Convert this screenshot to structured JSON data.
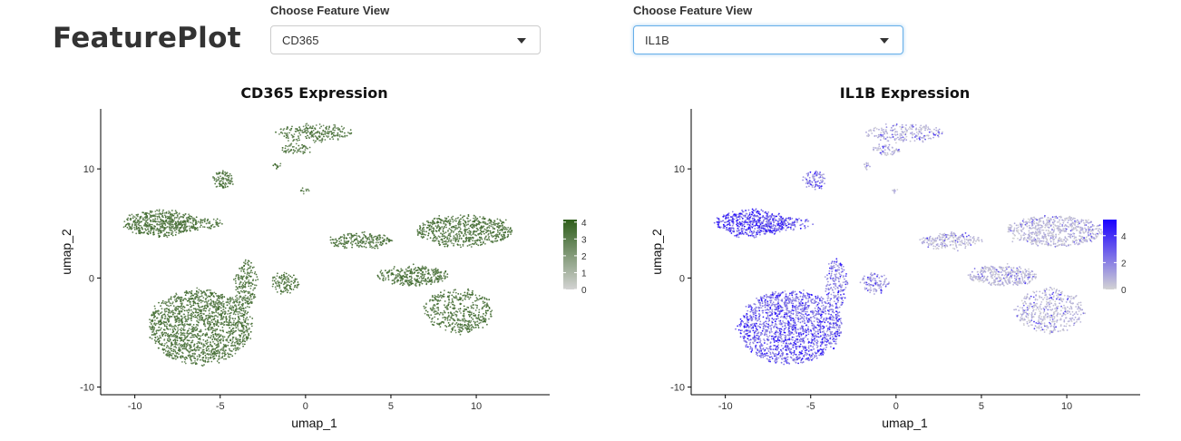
{
  "app": {
    "title": "FeaturePlot"
  },
  "controls": [
    {
      "label": "Choose Feature View",
      "selected": "CD365",
      "focused": false
    },
    {
      "label": "Choose Feature View",
      "selected": "IL1B",
      "focused": true
    }
  ],
  "chart_data": [
    {
      "type": "scatter",
      "title": "CD365 Expression",
      "xlabel": "umap_1",
      "ylabel": "umap_2",
      "xlim": [
        -12,
        14.3
      ],
      "ylim": [
        -10.7,
        15.5
      ],
      "xticks": [
        -10,
        -5,
        0,
        5,
        10
      ],
      "yticks": [
        -10,
        0,
        10
      ],
      "grid": false,
      "legend": {
        "placement": "right",
        "ticks": [
          0,
          1,
          2,
          3,
          4
        ],
        "low_color": "#d3d3d3",
        "high_color": "#2e5e1a"
      },
      "series": [
        {
          "color_scale": [
            "#d3d3d3",
            "#2e5e1a"
          ]
        }
      ]
    },
    {
      "type": "scatter",
      "title": "IL1B Expression",
      "xlabel": "umap_1",
      "ylabel": "umap_2",
      "xlim": [
        -12,
        14.3
      ],
      "ylim": [
        -10.7,
        15.5
      ],
      "xticks": [
        -10,
        -5,
        0,
        5,
        10
      ],
      "yticks": [
        -10,
        0,
        10
      ],
      "grid": false,
      "legend": {
        "placement": "right",
        "ticks": [
          0,
          2,
          4
        ],
        "low_color": "#d3d3d3",
        "high_color": "#1a00ff"
      },
      "series": [
        {
          "color_scale": [
            "#d3d3d3",
            "#1a00ff"
          ]
        }
      ]
    }
  ]
}
